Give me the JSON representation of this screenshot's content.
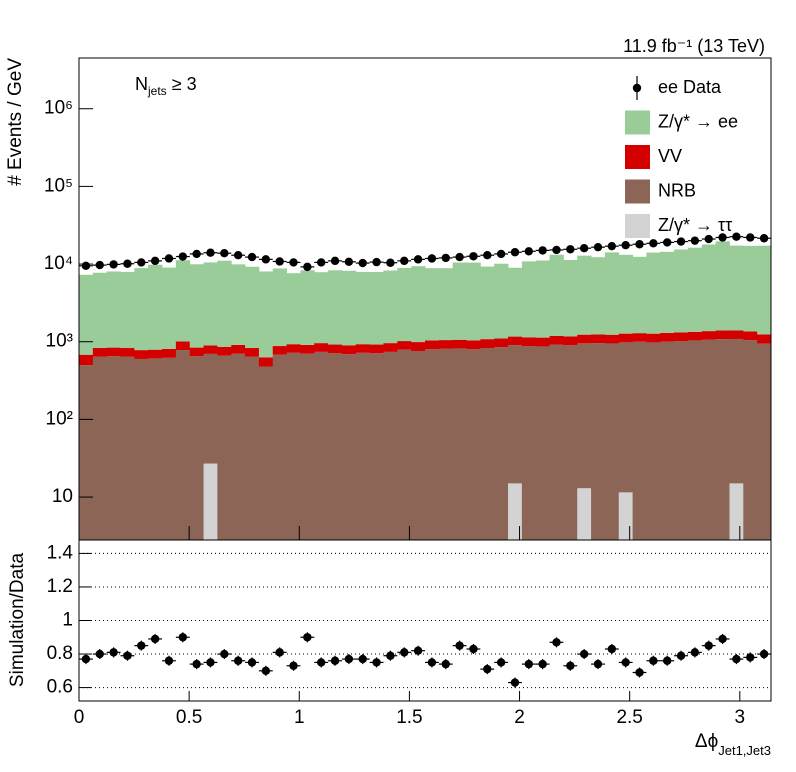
{
  "chart_data": [
    {
      "type": "histogram",
      "title": "11.9 fb⁻¹ (13 TeV)",
      "annotation": [
        "N",
        "jets",
        "≥ 3"
      ],
      "y_label": "# Events / GeV",
      "log_y": true,
      "ylim": [
        2.8,
        4500000
      ],
      "yticks": [
        10,
        {
          "value": 100,
          "label": "10²"
        },
        {
          "value": 1000,
          "label": "10³"
        },
        {
          "value": 10000,
          "label": "10⁴"
        },
        {
          "value": 100000,
          "label": "10⁵"
        },
        {
          "value": 1000000,
          "label": "10⁶"
        }
      ],
      "legend": "upper right",
      "bins": [
        0,
        0.0628,
        0.1257,
        0.1885,
        0.2513,
        0.3142,
        0.377,
        0.4398,
        0.5027,
        0.5655,
        0.6283,
        0.6912,
        0.754,
        0.8168,
        0.8796,
        0.9425,
        1.0053,
        1.0681,
        1.131,
        1.1938,
        1.2566,
        1.3195,
        1.3823,
        1.4451,
        1.508,
        1.5708,
        1.6336,
        1.6965,
        1.7593,
        1.8221,
        1.885,
        1.9478,
        2.0106,
        2.0735,
        2.1363,
        2.1991,
        2.2619,
        2.3248,
        2.3876,
        2.4504,
        2.5133,
        2.5761,
        2.6389,
        2.7018,
        2.7646,
        2.8274,
        2.8903,
        2.9531,
        3.0159,
        3.0788,
        3.1416
      ],
      "series": [
        {
          "name": "ee Data",
          "color": "#000000",
          "draw": "points",
          "values": [
            9500,
            9700,
            9900,
            10100,
            10500,
            11000,
            11800,
            12500,
            13500,
            14000,
            13800,
            13000,
            12300,
            11500,
            10800,
            10500,
            9200,
            10500,
            11000,
            10700,
            10300,
            10600,
            10400,
            11000,
            11500,
            11800,
            12000,
            12300,
            12600,
            13000,
            13500,
            14200,
            14600,
            15000,
            15200,
            15500,
            16000,
            16500,
            17000,
            17500,
            18000,
            18500,
            19000,
            19500,
            20000,
            21000,
            22000,
            22500,
            22000,
            21500
          ]
        },
        {
          "name": "Z/γ* → ee",
          "color": "#99cc99",
          "draw": "stack",
          "values": [
            6600,
            6900,
            7200,
            7100,
            8100,
            9000,
            8200,
            10200,
            9100,
            9600,
            10200,
            9000,
            8400,
            7400,
            7900,
            6700,
            7400,
            6900,
            7400,
            7300,
            7000,
            7000,
            7300,
            7900,
            8400,
            7800,
            7800,
            9400,
            9400,
            8200,
            9000,
            7800,
            9700,
            10000,
            12000,
            10100,
            11600,
            11000,
            12900,
            11900,
            11100,
            12800,
            13100,
            14100,
            14900,
            16500,
            18200,
            15900,
            15800,
            16000
          ]
        },
        {
          "name": "VV",
          "color": "#d40000",
          "draw": "stack",
          "values": [
            180,
            190,
            190,
            190,
            180,
            180,
            190,
            230,
            190,
            200,
            200,
            210,
            190,
            150,
            200,
            210,
            210,
            220,
            210,
            210,
            210,
            210,
            220,
            230,
            230,
            240,
            240,
            240,
            240,
            250,
            250,
            260,
            260,
            260,
            270,
            270,
            280,
            280,
            280,
            290,
            290,
            290,
            300,
            300,
            300,
            310,
            320,
            310,
            310,
            290
          ]
        },
        {
          "name": "NRB",
          "color": "#8c6556",
          "draw": "stack",
          "values": [
            500,
            640,
            650,
            640,
            600,
            610,
            620,
            780,
            650,
            670,
            660,
            700,
            640,
            480,
            680,
            720,
            700,
            740,
            710,
            690,
            720,
            710,
            740,
            790,
            760,
            800,
            810,
            820,
            800,
            830,
            850,
            890,
            880,
            870,
            920,
            900,
            940,
            960,
            950,
            970,
            1000,
            980,
            1000,
            1020,
            1040,
            1060,
            1080,
            1070,
            1050,
            950
          ]
        },
        {
          "name": "Z/γ* → ττ",
          "color": "#d3d3d3",
          "draw": "stack",
          "values": [
            0,
            0,
            0,
            0,
            0,
            0,
            0,
            0,
            0,
            27,
            0,
            0,
            0,
            0,
            0,
            0,
            0,
            0,
            0,
            0,
            0,
            0,
            0,
            0,
            0,
            0,
            0,
            0,
            0,
            0,
            0,
            15,
            0,
            0,
            0,
            0,
            13,
            0,
            0,
            11.5,
            0,
            0,
            0,
            0,
            0,
            0,
            0,
            15,
            0,
            0
          ]
        }
      ]
    },
    {
      "type": "errorbar",
      "y_label": "Simulation/Data",
      "x_label": [
        "Δϕ",
        "Jet1,Jet3"
      ],
      "xlim": [
        0,
        3.1416
      ],
      "xticks": [
        0,
        0.5,
        1,
        1.5,
        2,
        2.5,
        3
      ],
      "ylim": [
        0.52,
        1.48
      ],
      "yticks": [
        0.6,
        0.8,
        1,
        1.2,
        1.4
      ],
      "grid": true,
      "values": [
        0.77,
        0.8,
        0.81,
        0.79,
        0.85,
        0.89,
        0.76,
        0.9,
        0.74,
        0.75,
        0.8,
        0.76,
        0.75,
        0.7,
        0.81,
        0.73,
        0.9,
        0.75,
        0.76,
        0.77,
        0.77,
        0.75,
        0.79,
        0.81,
        0.82,
        0.75,
        0.74,
        0.85,
        0.83,
        0.71,
        0.75,
        0.63,
        0.74,
        0.74,
        0.87,
        0.73,
        0.8,
        0.74,
        0.83,
        0.75,
        0.69,
        0.76,
        0.76,
        0.79,
        0.81,
        0.85,
        0.89,
        0.77,
        0.78,
        0.8
      ],
      "errors": [
        0.03,
        0.03,
        0.03,
        0.03,
        0.03,
        0.03,
        0.03,
        0.03,
        0.03,
        0.03,
        0.03,
        0.03,
        0.03,
        0.03,
        0.03,
        0.03,
        0.03,
        0.03,
        0.03,
        0.03,
        0.03,
        0.03,
        0.03,
        0.03,
        0.03,
        0.03,
        0.03,
        0.03,
        0.03,
        0.03,
        0.03,
        0.03,
        0.03,
        0.03,
        0.03,
        0.03,
        0.03,
        0.03,
        0.03,
        0.03,
        0.03,
        0.03,
        0.03,
        0.03,
        0.03,
        0.03,
        0.03,
        0.03,
        0.03,
        0.03
      ]
    }
  ]
}
